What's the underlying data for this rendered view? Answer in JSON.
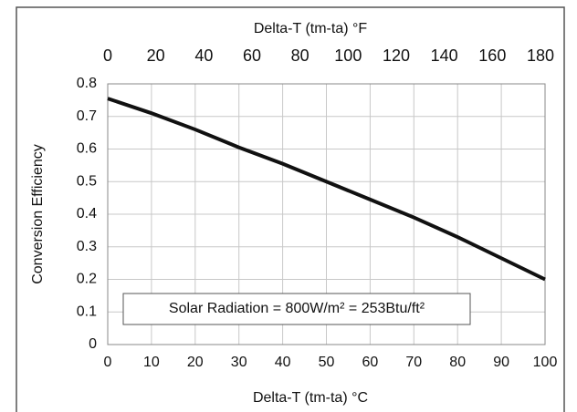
{
  "chart_data": {
    "type": "line",
    "x_label": "Delta-T (tm-ta) °C",
    "x2_label": "Delta-T (tm-ta) °F",
    "y_label": "Conversion Efficiency",
    "annotation": "Solar Radiation = 800W/m² = 253Btu/ft²",
    "x": [
      0,
      10,
      20,
      30,
      40,
      50,
      60,
      70,
      80,
      90,
      100
    ],
    "series": [
      {
        "name": "Conversion Efficiency",
        "color": "#111111",
        "values": [
          0.755,
          0.71,
          0.66,
          0.605,
          0.555,
          0.5,
          0.445,
          0.39,
          0.33,
          0.265,
          0.2
        ]
      }
    ],
    "xlim": [
      0,
      100
    ],
    "xticks": [
      0,
      10,
      20,
      30,
      40,
      50,
      60,
      70,
      80,
      90,
      100
    ],
    "x2lim": [
      0,
      180
    ],
    "x2ticks": [
      0,
      20,
      40,
      60,
      80,
      100,
      120,
      140,
      160,
      180
    ],
    "ylim": [
      0,
      0.8
    ],
    "yticks": [
      0,
      0.1,
      0.2,
      0.3,
      0.4,
      0.5,
      0.6,
      0.7,
      0.8
    ],
    "grid": true
  }
}
